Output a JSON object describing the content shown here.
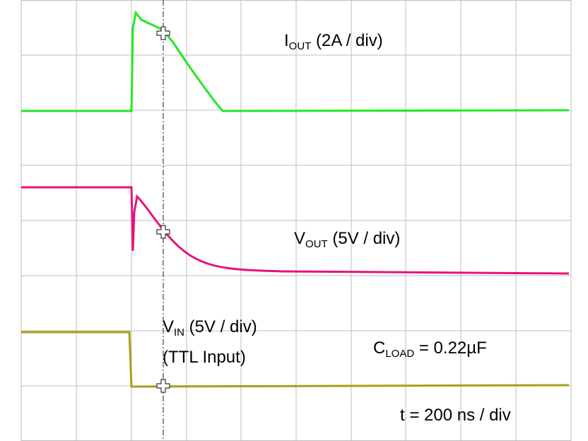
{
  "labels": {
    "iout": {
      "main": "I",
      "sub": "OUT",
      "rest": " (2A / div)"
    },
    "vout": {
      "main": "V",
      "sub": "OUT",
      "rest": " (5V / div)"
    },
    "vin": {
      "main": "V",
      "sub": "IN",
      "rest": " (5V / div)"
    },
    "vin_note": "(TTL Input)",
    "cload": {
      "main": "C",
      "sub": "LOAD",
      "rest": " = 0.22µF"
    },
    "timebase": "t = 200 ns / div"
  }
}
